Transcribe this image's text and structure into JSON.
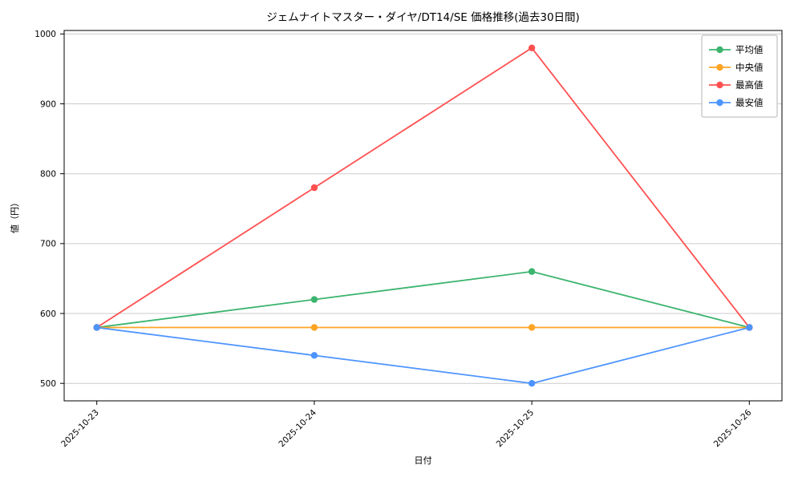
{
  "chart_data": {
    "type": "line",
    "title": "ジェムナイトマスター・ダイヤ/DT14/SE 価格推移(過去30日間)",
    "xlabel": "日付",
    "ylabel": "値（円）",
    "categories": [
      "2025-10-23",
      "2025-10-24",
      "2025-10-25",
      "2025-10-26"
    ],
    "series": [
      {
        "name": "平均値",
        "color": "#3cb46e",
        "values": [
          580,
          620,
          660,
          580
        ]
      },
      {
        "name": "中央値",
        "color": "#ffa424",
        "values": [
          580,
          580,
          580,
          580
        ]
      },
      {
        "name": "最高値",
        "color": "#ff5050",
        "values": [
          580,
          780,
          980,
          580
        ]
      },
      {
        "name": "最安値",
        "color": "#4d94ff",
        "values": [
          580,
          540,
          500,
          580
        ]
      }
    ],
    "yticks": [
      500,
      600,
      700,
      800,
      900,
      1000
    ],
    "ylim": [
      475,
      1005
    ],
    "grid": true,
    "legend_position": "top-right",
    "colors": {
      "grid": "#cccccc",
      "axis": "#000000",
      "legend_border": "#b3b3b3",
      "background": "#ffffff"
    }
  }
}
